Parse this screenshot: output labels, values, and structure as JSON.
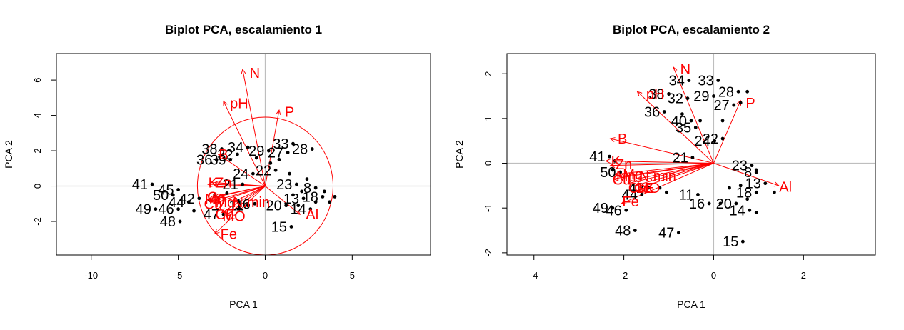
{
  "colors": {
    "points": "#000000",
    "vectors": "#ff0000",
    "axes": "#000000",
    "reference_lines": "#bebebe"
  },
  "chart_data": [
    {
      "type": "scatter",
      "title": "Biplot PCA, escalamiento 1",
      "xlabel": "PCA  1",
      "ylabel": "PCA  2",
      "xlim": [
        -12,
        9.5
      ],
      "ylim": [
        -3.9,
        7.5
      ],
      "xticks": [
        -10,
        -5,
        0,
        5
      ],
      "yticks": [
        -2,
        0,
        2,
        4,
        6
      ],
      "grid": false,
      "reference_lines": {
        "x": 0,
        "y": 0
      },
      "circle": {
        "center": [
          0,
          0
        ],
        "radius": 3.9
      },
      "points": [
        {
          "label": "41",
          "x": -6.5,
          "y": 0.1
        },
        {
          "label": "45",
          "x": -5.0,
          "y": -0.2
        },
        {
          "label": "50",
          "x": -5.3,
          "y": -0.5
        },
        {
          "label": "49",
          "x": -6.3,
          "y": -1.3
        },
        {
          "label": "46",
          "x": -5.0,
          "y": -1.3
        },
        {
          "label": "48",
          "x": -4.9,
          "y": -2.0
        },
        {
          "label": "42",
          "x": -3.8,
          "y": -0.7
        },
        {
          "label": "44",
          "x": -4.4,
          "y": -0.9
        },
        {
          "label": "47",
          "x": -2.4,
          "y": -1.6
        },
        {
          "label": "36",
          "x": -2.8,
          "y": 1.5
        },
        {
          "label": "38",
          "x": -2.5,
          "y": 2.1
        },
        {
          "label": "32",
          "x": -1.6,
          "y": 1.8
        },
        {
          "label": "39",
          "x": -2.0,
          "y": 1.5
        },
        {
          "label": "34",
          "x": -1.0,
          "y": 2.2
        },
        {
          "label": "21",
          "x": -1.3,
          "y": 0.1
        },
        {
          "label": "24",
          "x": -0.7,
          "y": 0.7
        },
        {
          "label": "29",
          "x": 0.2,
          "y": 2.0
        },
        {
          "label": "22",
          "x": 0.6,
          "y": 0.9
        },
        {
          "label": "33",
          "x": 1.6,
          "y": 2.4
        },
        {
          "label": "28",
          "x": 2.7,
          "y": 2.1
        },
        {
          "label": "27",
          "x": 1.3,
          "y": 1.9
        },
        {
          "label": "23",
          "x": 1.8,
          "y": 0.1
        },
        {
          "label": "16",
          "x": -0.6,
          "y": -1.0
        },
        {
          "label": "20",
          "x": 1.2,
          "y": -1.1
        },
        {
          "label": "13",
          "x": 2.2,
          "y": -0.7
        },
        {
          "label": "14",
          "x": 2.6,
          "y": -1.3
        },
        {
          "label": "15",
          "x": 1.5,
          "y": -2.3
        },
        {
          "label": "8",
          "x": 2.9,
          "y": -0.1
        },
        {
          "label": "18",
          "x": 3.3,
          "y": -0.6
        },
        {
          "label": "11",
          "x": -1.0,
          "y": -1.1
        }
      ],
      "extra_points": [
        {
          "x": 4.0,
          "y": -0.6
        },
        {
          "x": 3.7,
          "y": -0.9
        },
        {
          "x": 3.4,
          "y": -0.3
        },
        {
          "x": 2.4,
          "y": 0.4
        },
        {
          "x": 2.1,
          "y": -0.3
        },
        {
          "x": 1.6,
          "y": -0.5
        },
        {
          "x": 1.9,
          "y": -1.1
        },
        {
          "x": 2.9,
          "y": -0.9
        },
        {
          "x": 0.3,
          "y": 1.3
        },
        {
          "x": 1.4,
          "y": 0.7
        },
        {
          "x": -0.5,
          "y": 1.6
        },
        {
          "x": 0.8,
          "y": 1.5
        },
        {
          "x": -3.2,
          "y": -0.8
        },
        {
          "x": -2.9,
          "y": -0.5
        },
        {
          "x": -2.2,
          "y": -0.4
        },
        {
          "x": -4.1,
          "y": -1.4
        }
      ],
      "vectors": [
        {
          "label": "N",
          "x": -1.3,
          "y": 6.6
        },
        {
          "label": "pH",
          "x": -2.4,
          "y": 4.8
        },
        {
          "label": "P",
          "x": 0.8,
          "y": 4.3
        },
        {
          "label": "B",
          "x": -2.7,
          "y": 1.8
        },
        {
          "label": "K",
          "x": -3.3,
          "y": 0.1
        },
        {
          "label": "Zn",
          "x": -2.9,
          "y": 0.2
        },
        {
          "label": "Mn",
          "x": -3.2,
          "y": -0.7
        },
        {
          "label": "Cu",
          "x": -3.1,
          "y": -0.9
        },
        {
          "label": "Mg",
          "x": -3.0,
          "y": -1.0
        },
        {
          "label": "Ca",
          "x": -2.9,
          "y": -0.6
        },
        {
          "label": "N.min",
          "x": -1.8,
          "y": -0.9
        },
        {
          "label": "CE",
          "x": -2.5,
          "y": -1.5
        },
        {
          "label": "MO",
          "x": -2.3,
          "y": -1.7
        },
        {
          "label": "Fe",
          "x": -2.9,
          "y": -2.7
        },
        {
          "label": "Al",
          "x": 2.0,
          "y": -1.6
        }
      ],
      "vector_labels": [
        {
          "text": "N",
          "x": -0.6,
          "y": 6.4
        },
        {
          "text": "pH",
          "x": -1.5,
          "y": 4.7
        },
        {
          "text": "P",
          "x": 1.4,
          "y": 4.2
        },
        {
          "text": "B",
          "x": -2.4,
          "y": 1.8
        },
        {
          "text": "K",
          "x": -3.0,
          "y": 0.2
        },
        {
          "text": "Zn",
          "x": -2.4,
          "y": 0.2
        },
        {
          "text": "Mn",
          "x": -2.9,
          "y": -0.7
        },
        {
          "text": "Cu",
          "x": -3.0,
          "y": -1.0
        },
        {
          "text": "Mg",
          "x": -2.3,
          "y": -0.9
        },
        {
          "text": "Ca",
          "x": -2.8,
          "y": -0.6
        },
        {
          "text": "N.min",
          "x": -0.8,
          "y": -0.9
        },
        {
          "text": "CE",
          "x": -2.3,
          "y": -1.6
        },
        {
          "text": "MO",
          "x": -1.8,
          "y": -1.7
        },
        {
          "text": "Fe",
          "x": -2.1,
          "y": -2.7
        },
        {
          "text": "Al",
          "x": 2.7,
          "y": -1.6
        }
      ]
    },
    {
      "type": "scatter",
      "title": "Biplot PCA, escalamiento 2",
      "xlabel": "PCA  1",
      "ylabel": "PCA  2",
      "xlim": [
        -4.6,
        3.6
      ],
      "ylim": [
        -2.05,
        2.45
      ],
      "xticks": [
        -4,
        -2,
        0,
        2
      ],
      "yticks": [
        -2,
        -1,
        0,
        1,
        2
      ],
      "grid": false,
      "reference_lines": {
        "x": 0,
        "y": 0
      },
      "points": [
        {
          "label": "41",
          "x": -2.32,
          "y": 0.15
        },
        {
          "label": "50",
          "x": -2.08,
          "y": -0.2
        },
        {
          "label": "49",
          "x": -2.25,
          "y": -1.0
        },
        {
          "label": "46",
          "x": -1.95,
          "y": -1.05
        },
        {
          "label": "48",
          "x": -1.75,
          "y": -1.5
        },
        {
          "label": "47",
          "x": -0.78,
          "y": -1.55
        },
        {
          "label": "42",
          "x": -1.45,
          "y": -0.55
        },
        {
          "label": "44",
          "x": -1.6,
          "y": -0.7
        },
        {
          "label": "11",
          "x": -0.35,
          "y": -0.7
        },
        {
          "label": "16",
          "x": -0.1,
          "y": -0.9
        },
        {
          "label": "15",
          "x": 0.65,
          "y": -1.75
        },
        {
          "label": "20",
          "x": 0.5,
          "y": -0.9
        },
        {
          "label": "14",
          "x": 0.8,
          "y": -1.05
        },
        {
          "label": "13",
          "x": 1.15,
          "y": -0.45
        },
        {
          "label": "18",
          "x": 0.95,
          "y": -0.65
        },
        {
          "label": "8",
          "x": 0.95,
          "y": -0.2
        },
        {
          "label": "23",
          "x": 0.85,
          "y": -0.05
        },
        {
          "label": "21",
          "x": -0.47,
          "y": 0.13
        },
        {
          "label": "24",
          "x": 0.02,
          "y": 0.5
        },
        {
          "label": "22",
          "x": 0.2,
          "y": 0.55
        },
        {
          "label": "36",
          "x": -1.1,
          "y": 1.15
        },
        {
          "label": "38",
          "x": -1.0,
          "y": 1.55
        },
        {
          "label": "32",
          "x": -0.58,
          "y": 1.45
        },
        {
          "label": "34",
          "x": -0.55,
          "y": 1.85
        },
        {
          "label": "33",
          "x": 0.1,
          "y": 1.85
        },
        {
          "label": "29",
          "x": 0.0,
          "y": 1.5
        },
        {
          "label": "28",
          "x": 0.55,
          "y": 1.6
        },
        {
          "label": "27",
          "x": 0.45,
          "y": 1.3
        },
        {
          "label": "35",
          "x": -0.4,
          "y": 0.8
        },
        {
          "label": "40",
          "x": -0.5,
          "y": 0.95
        }
      ],
      "extra_points": [
        {
          "x": -0.7,
          "y": 1.1
        },
        {
          "x": -0.3,
          "y": 0.95
        },
        {
          "x": 0.2,
          "y": 0.95
        },
        {
          "x": 0.6,
          "y": 1.35
        },
        {
          "x": 0.75,
          "y": 1.6
        },
        {
          "x": 0.95,
          "y": -0.15
        },
        {
          "x": 0.6,
          "y": -0.5
        },
        {
          "x": 0.35,
          "y": -0.55
        },
        {
          "x": 0.75,
          "y": -0.8
        },
        {
          "x": 0.95,
          "y": -1.1
        },
        {
          "x": 1.35,
          "y": -0.65
        },
        {
          "x": 0.15,
          "y": -0.9
        },
        {
          "x": -1.2,
          "y": -0.55
        },
        {
          "x": -1.05,
          "y": -0.65
        },
        {
          "x": -2.25,
          "y": -0.15
        },
        {
          "x": -2.2,
          "y": 0.05
        }
      ],
      "vectors": [
        {
          "label": "N",
          "x": -0.9,
          "y": 2.15
        },
        {
          "label": "pH",
          "x": -1.7,
          "y": 1.6
        },
        {
          "label": "P",
          "x": 0.6,
          "y": 1.4
        },
        {
          "label": "B",
          "x": -2.3,
          "y": 0.55
        },
        {
          "label": "K",
          "x": -2.4,
          "y": 0.05
        },
        {
          "label": "Zn",
          "x": -2.3,
          "y": -0.05
        },
        {
          "label": "Mn",
          "x": -2.2,
          "y": -0.25
        },
        {
          "label": "Cu",
          "x": -2.25,
          "y": -0.35
        },
        {
          "label": "Mg",
          "x": -2.1,
          "y": -0.3
        },
        {
          "label": "Ca",
          "x": -1.9,
          "y": -0.45
        },
        {
          "label": "N.min",
          "x": -1.7,
          "y": -0.35
        },
        {
          "label": "CE",
          "x": -1.75,
          "y": -0.5
        },
        {
          "label": "MO",
          "x": -1.65,
          "y": -0.55
        },
        {
          "label": "Fe",
          "x": -2.05,
          "y": -0.9
        },
        {
          "label": "Al",
          "x": 1.45,
          "y": -0.5
        }
      ],
      "vector_labels": [
        {
          "text": "N",
          "x": -0.63,
          "y": 2.1
        },
        {
          "text": "pH",
          "x": -1.3,
          "y": 1.55
        },
        {
          "text": "P",
          "x": 0.82,
          "y": 1.35
        },
        {
          "text": "B",
          "x": -2.03,
          "y": 0.55
        },
        {
          "text": "K",
          "x": -2.18,
          "y": 0.05
        },
        {
          "text": "Zn",
          "x": -2.0,
          "y": -0.02
        },
        {
          "text": "Mn",
          "x": -1.95,
          "y": -0.28
        },
        {
          "text": "Cu",
          "x": -2.05,
          "y": -0.37
        },
        {
          "text": "Mg",
          "x": -1.8,
          "y": -0.25
        },
        {
          "text": "Ca",
          "x": -1.7,
          "y": -0.55
        },
        {
          "text": "N.min",
          "x": -1.25,
          "y": -0.28
        },
        {
          "text": "CE",
          "x": -1.55,
          "y": -0.55
        },
        {
          "text": "MO",
          "x": -1.45,
          "y": -0.55
        },
        {
          "text": "Fe",
          "x": -1.85,
          "y": -0.85
        },
        {
          "text": "Al",
          "x": 1.6,
          "y": -0.53
        }
      ]
    }
  ]
}
